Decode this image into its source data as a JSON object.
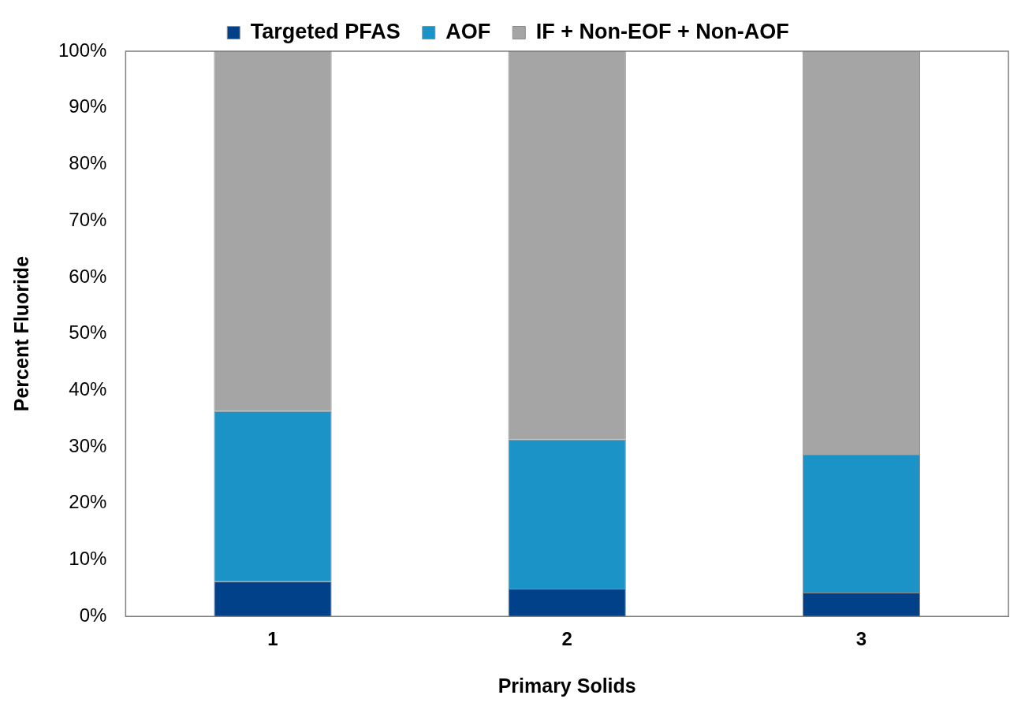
{
  "chart_data": {
    "type": "bar",
    "stacked": true,
    "xlabel": "Primary Solids",
    "ylabel": "Percent Fluoride",
    "categories": [
      "1",
      "2",
      "3"
    ],
    "series": [
      {
        "name": "Targeted PFAS",
        "color": "#00418a",
        "values": [
          6.2,
          4.9,
          4.2
        ]
      },
      {
        "name": "AOF",
        "color": "#1b93c6",
        "values": [
          30.1,
          26.4,
          24.4
        ]
      },
      {
        "name": "IF + Non-EOF + Non-AOF",
        "color": "#a5a5a5",
        "values": [
          63.7,
          68.7,
          71.4
        ]
      }
    ],
    "ylim": [
      0,
      100
    ],
    "yticks": [
      {
        "value": 0,
        "label": "0%"
      },
      {
        "value": 10,
        "label": "10%"
      },
      {
        "value": 20,
        "label": "20%"
      },
      {
        "value": 30,
        "label": "30%"
      },
      {
        "value": 40,
        "label": "40%"
      },
      {
        "value": 50,
        "label": "50%"
      },
      {
        "value": 60,
        "label": "60%"
      },
      {
        "value": 70,
        "label": "70%"
      },
      {
        "value": 80,
        "label": "80%"
      },
      {
        "value": 90,
        "label": "90%"
      },
      {
        "value": 100,
        "label": "100%"
      }
    ],
    "grid": false,
    "legend": "top"
  }
}
